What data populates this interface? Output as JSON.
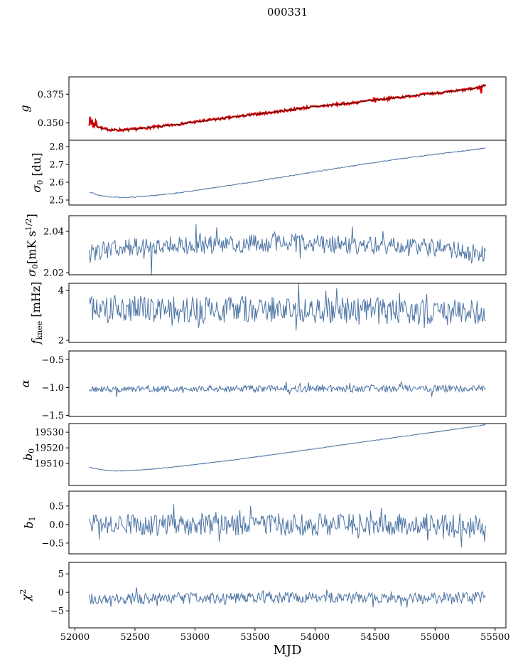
{
  "chart_data": {
    "type": "line",
    "title": "000331",
    "xlabel": "MJD",
    "background": "#ffffff",
    "frame_color": "#000000",
    "line_color": "#4c74a4",
    "x_axis": {
      "range": [
        51950,
        55590
      ],
      "data_range": [
        52120,
        55420
      ],
      "ticks": [
        52000,
        52500,
        53000,
        53500,
        54000,
        54500,
        55000,
        55500
      ],
      "tick_labels": [
        "52000",
        "52500",
        "53000",
        "53500",
        "54000",
        "54500",
        "55000",
        "55500"
      ]
    },
    "panels": [
      {
        "id": "g",
        "label": [
          {
            "t": "g",
            "s": "i"
          }
        ],
        "ylim": [
          0.335,
          0.39
        ],
        "yticks": {
          "values": [
            0.35,
            0.375
          ],
          "labels": [
            "0.350",
            "0.375"
          ]
        },
        "series": [
          {
            "name": "gain-red",
            "color": "#e00000",
            "width": 2.2,
            "seed": 7,
            "n": 560,
            "noise": 0.0011,
            "anchors": [
              [
                52120,
                0.353
              ],
              [
                52170,
                0.348
              ],
              [
                52240,
                0.3448
              ],
              [
                52330,
                0.3438
              ],
              [
                52430,
                0.344
              ],
              [
                52550,
                0.3452
              ],
              [
                52700,
                0.3468
              ],
              [
                52900,
                0.3495
              ],
              [
                53100,
                0.3522
              ],
              [
                53300,
                0.3548
              ],
              [
                53500,
                0.3575
              ],
              [
                53700,
                0.36
              ],
              [
                53900,
                0.363
              ],
              [
                54100,
                0.3652
              ],
              [
                54300,
                0.3672
              ],
              [
                54500,
                0.37
              ],
              [
                54700,
                0.3722
              ],
              [
                54900,
                0.3748
              ],
              [
                55100,
                0.3768
              ],
              [
                55250,
                0.3788
              ],
              [
                55370,
                0.3808
              ],
              [
                55420,
                0.3832
              ]
            ],
            "start_burst": {
              "until": 52180,
              "amp": 0.005
            },
            "events": [
              {
                "x": 55385,
                "dy": -0.0055
              },
              {
                "x": 55410,
                "dy": 0.001
              }
            ]
          },
          {
            "name": "gain-black",
            "color": "#151515",
            "width": 0.7,
            "seed": 8,
            "n": 560,
            "noise": 0.0004,
            "anchors": [
              [
                52120,
                0.353
              ],
              [
                52170,
                0.348
              ],
              [
                52240,
                0.3448
              ],
              [
                52330,
                0.3438
              ],
              [
                52430,
                0.344
              ],
              [
                52550,
                0.3452
              ],
              [
                52700,
                0.3468
              ],
              [
                52900,
                0.3495
              ],
              [
                53100,
                0.3522
              ],
              [
                53300,
                0.3548
              ],
              [
                53500,
                0.3575
              ],
              [
                53700,
                0.36
              ],
              [
                53900,
                0.363
              ],
              [
                54100,
                0.3652
              ],
              [
                54300,
                0.3672
              ],
              [
                54500,
                0.37
              ],
              [
                54700,
                0.3722
              ],
              [
                54900,
                0.3748
              ],
              [
                55100,
                0.3768
              ],
              [
                55250,
                0.3788
              ],
              [
                55370,
                0.3808
              ],
              [
                55420,
                0.3832
              ]
            ]
          }
        ]
      },
      {
        "id": "sigma0-du",
        "label": [
          {
            "t": "σ",
            "s": "i"
          },
          {
            "t": "0",
            "s": "sub"
          },
          {
            "t": " [du]",
            "s": "n"
          }
        ],
        "ylim": [
          2.472,
          2.836
        ],
        "yticks": {
          "values": [
            2.5,
            2.6,
            2.7,
            2.8
          ],
          "labels": [
            "2.5",
            "2.6",
            "2.7",
            "2.8"
          ]
        },
        "series": [
          {
            "name": "sigma0-du",
            "color": "#4c74a4",
            "width": 1.0,
            "seed": 21,
            "n": 600,
            "noise": 0.0025,
            "anchors": [
              [
                52120,
                2.545
              ],
              [
                52200,
                2.527
              ],
              [
                52300,
                2.517
              ],
              [
                52400,
                2.514
              ],
              [
                52500,
                2.517
              ],
              [
                52650,
                2.525
              ],
              [
                52800,
                2.535
              ],
              [
                53000,
                2.553
              ],
              [
                53200,
                2.573
              ],
              [
                53400,
                2.594
              ],
              [
                53600,
                2.615
              ],
              [
                53800,
                2.637
              ],
              [
                54000,
                2.659
              ],
              [
                54200,
                2.68
              ],
              [
                54400,
                2.701
              ],
              [
                54600,
                2.721
              ],
              [
                54800,
                2.74
              ],
              [
                55000,
                2.757
              ],
              [
                55150,
                2.769
              ],
              [
                55300,
                2.781
              ],
              [
                55420,
                2.792
              ]
            ]
          }
        ]
      },
      {
        "id": "sigma0-mk",
        "label": [
          {
            "t": "σ",
            "s": "i"
          },
          {
            "t": "0",
            "s": "sub"
          },
          {
            "t": "[mK s",
            "s": "n"
          },
          {
            "t": "1/2",
            "s": "sup"
          },
          {
            "t": "]",
            "s": "n"
          }
        ],
        "ylim": [
          2.019,
          2.0476
        ],
        "yticks": {
          "values": [
            2.02,
            2.04
          ],
          "labels": [
            "2.02",
            "2.04"
          ]
        },
        "series": [
          {
            "name": "sigma0-mk",
            "color": "#4c74a4",
            "width": 1.0,
            "seed": 31,
            "n": 480,
            "noise": 0.0045,
            "anchors": [
              [
                52120,
                2.0295
              ],
              [
                52400,
                2.0325
              ],
              [
                53000,
                2.0335
              ],
              [
                53700,
                2.0345
              ],
              [
                54400,
                2.033
              ],
              [
                55000,
                2.032
              ],
              [
                55420,
                2.0285
              ]
            ],
            "spike_prob": 0.05,
            "spike_amp": 0.006,
            "events": [
              {
                "x": 52125,
                "dy": -0.006
              },
              {
                "x": 52640,
                "dy": -0.013
              },
              {
                "x": 53180,
                "dy": 0.009
              },
              {
                "x": 55300,
                "dy": -0.008
              }
            ]
          }
        ]
      },
      {
        "id": "fknee",
        "label": [
          {
            "t": "f",
            "s": "i"
          },
          {
            "t": "knee",
            "s": "sub"
          },
          {
            "t": " [mHz]",
            "s": "n"
          }
        ],
        "ylim": [
          1.914,
          4.286
        ],
        "yticks": {
          "values": [
            2,
            4
          ],
          "labels": [
            "2",
            "4"
          ]
        },
        "series": [
          {
            "name": "fknee",
            "color": "#4c74a4",
            "width": 1.0,
            "seed": 41,
            "n": 480,
            "noise": 0.55,
            "anchors": [
              [
                52120,
                3.3
              ],
              [
                53000,
                3.25
              ],
              [
                54000,
                3.2
              ],
              [
                55420,
                3.1
              ]
            ],
            "spike_prob": 0.12,
            "spike_amp": 0.55
          }
        ]
      },
      {
        "id": "alpha",
        "label": [
          {
            "t": "α",
            "s": "i"
          }
        ],
        "ylim": [
          -1.52,
          -0.34
        ],
        "yticks": {
          "values": [
            -0.5,
            -1.0,
            -1.5
          ],
          "labels": [
            "−0.5",
            "−1.0",
            "−1.5"
          ]
        },
        "series": [
          {
            "name": "alpha",
            "color": "#4c74a4",
            "width": 1.0,
            "seed": 51,
            "n": 480,
            "noise": 0.06,
            "anchors": [
              [
                52120,
                -1.03
              ],
              [
                53500,
                -1.02
              ],
              [
                55420,
                -1.02
              ]
            ],
            "spike_prob": 0.05,
            "spike_amp": 0.1
          }
        ]
      },
      {
        "id": "b0",
        "label": [
          {
            "t": "b",
            "s": "i"
          },
          {
            "t": "0",
            "s": "sub"
          }
        ],
        "ylim": [
          19496,
          19535.5
        ],
        "yticks": {
          "values": [
            19510,
            19520,
            19530
          ],
          "labels": [
            "19510",
            "19520",
            "19530"
          ]
        },
        "series": [
          {
            "name": "b0",
            "color": "#4c74a4",
            "width": 1.0,
            "seed": 61,
            "n": 600,
            "noise": 0.22,
            "anchors": [
              [
                52120,
                19507.6
              ],
              [
                52220,
                19506.0
              ],
              [
                52330,
                19505.3
              ],
              [
                52450,
                19505.5
              ],
              [
                52600,
                19506.2
              ],
              [
                52800,
                19507.6
              ],
              [
                53000,
                19509.3
              ],
              [
                53200,
                19511.2
              ],
              [
                53400,
                19513.1
              ],
              [
                53600,
                19515.2
              ],
              [
                53800,
                19517.3
              ],
              [
                54000,
                19519.4
              ],
              [
                54200,
                19521.6
              ],
              [
                54400,
                19523.8
              ],
              [
                54600,
                19525.9
              ],
              [
                54800,
                19528.0
              ],
              [
                55000,
                19530.1
              ],
              [
                55150,
                19531.7
              ],
              [
                55300,
                19533.3
              ],
              [
                55420,
                19534.8
              ]
            ]
          }
        ]
      },
      {
        "id": "b1",
        "label": [
          {
            "t": "b",
            "s": "i"
          },
          {
            "t": "1",
            "s": "sub"
          }
        ],
        "ylim": [
          -0.79,
          0.9
        ],
        "yticks": {
          "values": [
            0.5,
            0.0,
            -0.5
          ],
          "labels": [
            "0.5",
            "0.0",
            "−0.5"
          ]
        },
        "series": [
          {
            "name": "b1",
            "color": "#4c74a4",
            "width": 1.0,
            "seed": 71,
            "n": 480,
            "noise": 0.3,
            "anchors": [
              [
                52120,
                0.0
              ],
              [
                55420,
                0.0
              ]
            ],
            "spike_prob": 0.1,
            "spike_amp": 0.35
          }
        ]
      },
      {
        "id": "chi2",
        "label": [
          {
            "t": "χ",
            "s": "i"
          },
          {
            "t": "2",
            "s": "sup"
          }
        ],
        "ylim": [
          -9.6,
          8.1
        ],
        "yticks": {
          "values": [
            5,
            0,
            -5
          ],
          "labels": [
            "5",
            "0",
            "−5"
          ]
        },
        "series": [
          {
            "name": "chi2",
            "color": "#4c74a4",
            "width": 1.0,
            "seed": 81,
            "n": 480,
            "noise": 1.5,
            "anchors": [
              [
                52120,
                -1.7
              ],
              [
                53800,
                -1.5
              ],
              [
                55420,
                -1.3
              ]
            ],
            "spike_prob": 0.08,
            "spike_amp": 2.2
          }
        ]
      }
    ]
  }
}
